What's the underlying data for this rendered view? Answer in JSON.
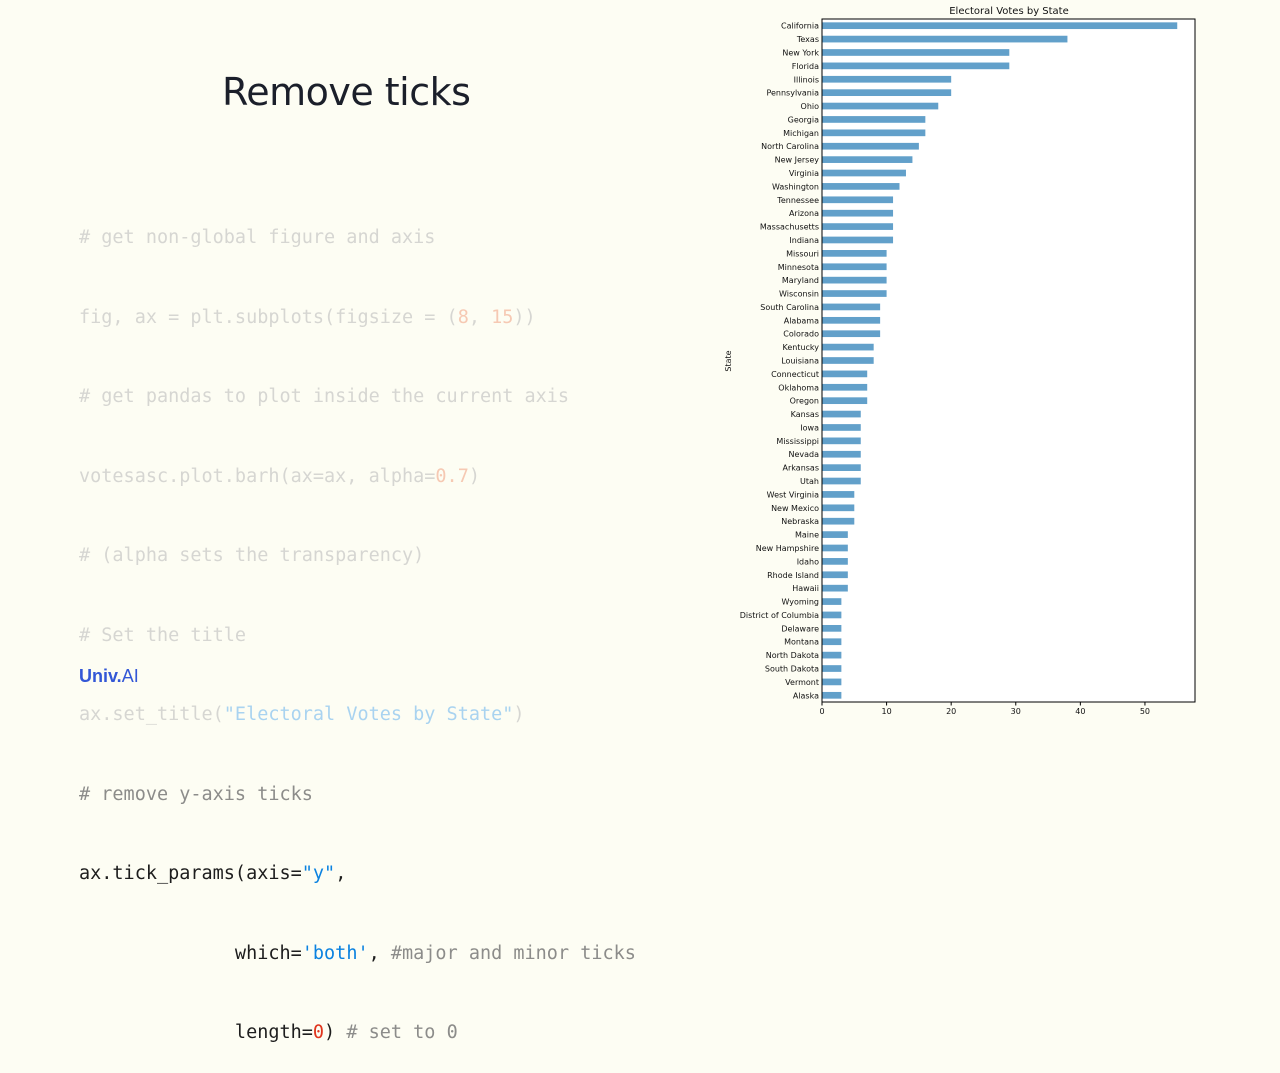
{
  "slide": {
    "title": "Remove ticks",
    "logo_main": "Univ",
    "logo_dot": ".",
    "logo_ai": "AI"
  },
  "code": {
    "l1": "# get non-global figure and axis",
    "l2a": "fig, ax = plt.subplots(figsize = (",
    "l2b": "8",
    "l2c": ", ",
    "l2d": "15",
    "l2e": "))",
    "l3": "# get pandas to plot inside the current axis",
    "l4a": "votesasc.plot.barh(ax=ax, alpha=",
    "l4b": "0.7",
    "l4c": ")",
    "l5": "# (alpha sets the transparency)",
    "l6": "# Set the title",
    "l7a": "ax.set_title(",
    "l7b": "\"Electoral Votes by State\"",
    "l7c": ")",
    "l8": "# remove y-axis ticks",
    "l9a": "ax.tick_params(axis=",
    "l9b": "\"y\"",
    "l9c": ",",
    "l10a": "              which=",
    "l10b": "'both'",
    "l10c": ", ",
    "l10d": "#major and minor ticks",
    "l11a": "              length=",
    "l11b": "0",
    "l11c": ") ",
    "l11d": "# set to 0"
  },
  "chart_data": {
    "type": "bar",
    "orientation": "horizontal",
    "title": "Electoral Votes by State",
    "ylabel": "State",
    "xlabel": "",
    "xlim": [
      0,
      57.75
    ],
    "xticks": [
      0,
      10,
      20,
      30,
      40,
      50
    ],
    "bar_color": "#1f77b4",
    "alpha": 0.7,
    "grid": false,
    "categories": [
      "California",
      "Texas",
      "New York",
      "Florida",
      "Illinois",
      "Pennsylvania",
      "Ohio",
      "Georgia",
      "Michigan",
      "North Carolina",
      "New Jersey",
      "Virginia",
      "Washington",
      "Tennessee",
      "Arizona",
      "Massachusetts",
      "Indiana",
      "Missouri",
      "Minnesota",
      "Maryland",
      "Wisconsin",
      "South Carolina",
      "Alabama",
      "Colorado",
      "Kentucky",
      "Louisiana",
      "Connecticut",
      "Oklahoma",
      "Oregon",
      "Kansas",
      "Iowa",
      "Mississippi",
      "Nevada",
      "Arkansas",
      "Utah",
      "West Virginia",
      "New Mexico",
      "Nebraska",
      "Maine",
      "New Hampshire",
      "Idaho",
      "Rhode Island",
      "Hawaii",
      "Wyoming",
      "District of Columbia",
      "Delaware",
      "Montana",
      "North Dakota",
      "South Dakota",
      "Vermont",
      "Alaska"
    ],
    "values": [
      55,
      38,
      29,
      29,
      20,
      20,
      18,
      16,
      16,
      15,
      14,
      13,
      12,
      11,
      11,
      11,
      11,
      10,
      10,
      10,
      10,
      9,
      9,
      9,
      8,
      8,
      7,
      7,
      7,
      6,
      6,
      6,
      6,
      6,
      6,
      5,
      5,
      5,
      4,
      4,
      4,
      4,
      4,
      3,
      3,
      3,
      3,
      3,
      3,
      3,
      3
    ]
  }
}
